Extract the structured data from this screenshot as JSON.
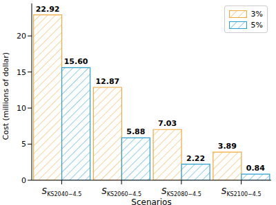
{
  "chart_data": {
    "type": "bar",
    "x_label": "Scenarios",
    "y_label": "Cost (millions of dollar)",
    "categories": [
      "SKS2040−4.5",
      "SKS2060−4.5",
      "SKS2080−4.5",
      "SKS2100−4.5"
    ],
    "series": [
      {
        "name": "3%",
        "color": "#f2a93b",
        "values": [
          22.92,
          12.87,
          7.03,
          3.89
        ],
        "value_labels": [
          "22.92",
          "12.87",
          "7.03",
          "3.89"
        ]
      },
      {
        "name": "5%",
        "color": "#2a9fd0",
        "values": [
          15.6,
          5.88,
          2.22,
          0.84
        ],
        "value_labels": [
          "15.60",
          "5.88",
          "2.22",
          "0.84"
        ]
      }
    ],
    "ylim": [
      0,
      24.5
    ],
    "yticks": [
      0,
      5,
      10,
      15,
      20
    ],
    "data_labels": true,
    "legend": "upper right",
    "grid": false
  }
}
